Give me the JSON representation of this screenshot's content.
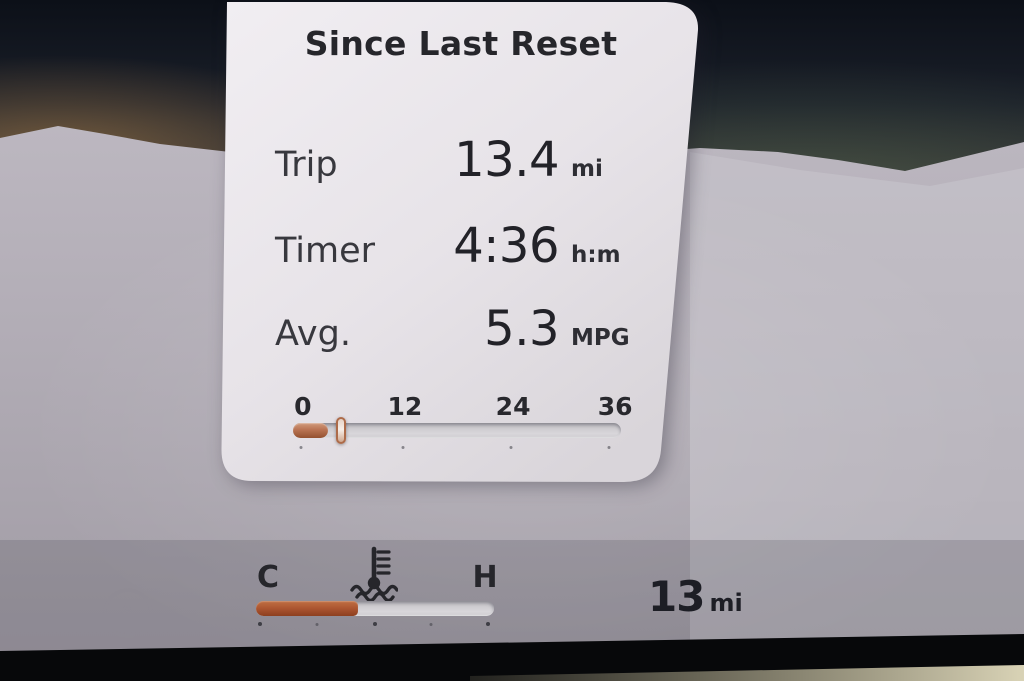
{
  "colors": {
    "accent_copper": "#b5714f",
    "coolant_fill": "#ab5530",
    "card_background": "#e9e6ea",
    "text_primary": "#26262b",
    "bezel_black": "#07080a"
  },
  "card": {
    "title": "Since Last Reset",
    "rows": [
      {
        "label": "Trip",
        "value": "13.4",
        "unit": "mi"
      },
      {
        "label": "Timer",
        "value": "4:36",
        "unit": "h:m"
      },
      {
        "label": "Avg.",
        "value": "5.3",
        "unit": "MPG"
      }
    ],
    "gauge": {
      "ticks": [
        "0",
        "12",
        "24",
        "36"
      ],
      "min": 0,
      "max": 36,
      "fill_value": 3.8,
      "marker_value": 5.3
    }
  },
  "cluster": {
    "coolant": {
      "cold_label": "C",
      "hot_label": "H",
      "icon": "coolant-temperature-icon",
      "fill_percent": 43
    },
    "range": {
      "value": "13",
      "unit": "mi"
    },
    "icons": {
      "auto_start_stop": "auto-start-stop-icon"
    }
  }
}
